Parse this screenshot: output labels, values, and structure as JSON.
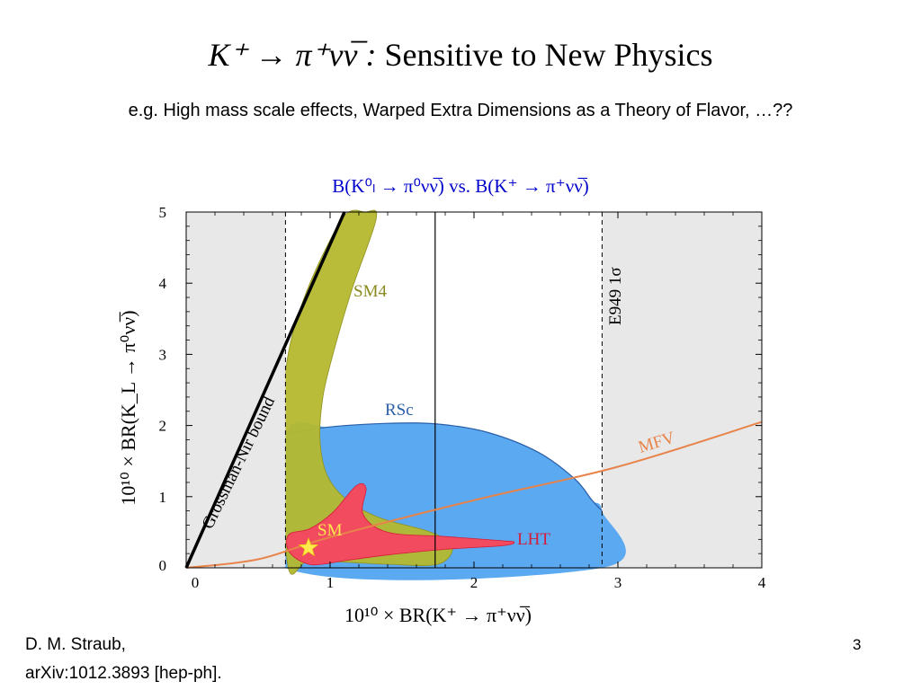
{
  "slide": {
    "title_math": "K⁺ → π⁺νν̅ :",
    "title_text": "Sensitive to New Physics",
    "subtitle": "e.g. High mass scale effects, Warped Extra Dimensions as a Theory of Flavor, …??",
    "chart_heading": "B(K⁰ₗ → π⁰νν̅) vs.  B(K⁺ → π⁺νν̅)",
    "citation_line1": "D. M. Straub,",
    "citation_line2": "arXiv:1012.3893 [hep-ph].",
    "page_number": "3"
  },
  "chart_data": {
    "type": "scatter",
    "xlabel": "10¹⁰ × BR(K⁺ → π⁺νν̅)",
    "ylabel": "10¹⁰ × BR(K_L → π⁰νν̅)",
    "xlim": [
      0,
      4
    ],
    "ylim": [
      0,
      5
    ],
    "x_ticks": [
      "0",
      "1",
      "2",
      "3",
      "4"
    ],
    "y_ticks": [
      "0",
      "1",
      "2",
      "3",
      "4",
      "5"
    ],
    "grossman_nir_bound": {
      "label": "Grossman-Nir bound",
      "points": [
        [
          0,
          0
        ],
        [
          1.1,
          5.0
        ]
      ]
    },
    "e949_band": {
      "label": "E949 1σ",
      "x_low": 0.69,
      "x_high": 2.89
    },
    "e949_central": 1.73,
    "regions": [
      {
        "name": "SM4",
        "color": "#b5b82e",
        "outline": [
          [
            0.7,
            2.9
          ],
          [
            1.05,
            4.8
          ],
          [
            1.25,
            5.0
          ],
          [
            1.32,
            4.9
          ],
          [
            1.15,
            3.9
          ],
          [
            1.02,
            3.0
          ],
          [
            0.95,
            2.4
          ],
          [
            0.93,
            1.8
          ],
          [
            0.98,
            1.3
          ],
          [
            1.12,
            0.95
          ],
          [
            1.35,
            0.7
          ],
          [
            1.7,
            0.5
          ],
          [
            1.85,
            0.3
          ],
          [
            1.75,
            0.05
          ],
          [
            1.4,
            0.05
          ],
          [
            1.1,
            0.08
          ],
          [
            0.85,
            0.1
          ],
          [
            0.7,
            0.12
          ]
        ]
      },
      {
        "name": "RSc",
        "color": "#5ba9f0",
        "edge": "#2b5fa8",
        "outline": [
          [
            0.69,
            1.88
          ],
          [
            1.0,
            1.98
          ],
          [
            1.4,
            2.03
          ],
          [
            1.75,
            2.02
          ],
          [
            2.1,
            1.9
          ],
          [
            2.45,
            1.62
          ],
          [
            2.7,
            1.25
          ],
          [
            2.82,
            0.95
          ],
          [
            2.89,
            0.8
          ],
          [
            2.89,
            0.0
          ],
          [
            0.69,
            0.0
          ]
        ]
      },
      {
        "name": "LHT",
        "color": "#f24a5e",
        "edge": "#d41c39",
        "outline": [
          [
            0.7,
            0.3
          ],
          [
            0.72,
            0.48
          ],
          [
            0.86,
            0.55
          ],
          [
            1.02,
            0.78
          ],
          [
            1.18,
            1.15
          ],
          [
            1.25,
            1.12
          ],
          [
            1.23,
            0.75
          ],
          [
            1.4,
            0.5
          ],
          [
            1.8,
            0.44
          ],
          [
            2.2,
            0.38
          ],
          [
            2.28,
            0.36
          ],
          [
            2.2,
            0.31
          ],
          [
            1.8,
            0.26
          ],
          [
            1.4,
            0.18
          ],
          [
            1.1,
            0.1
          ],
          [
            0.95,
            0.05
          ],
          [
            0.85,
            0.05
          ],
          [
            0.75,
            0.15
          ]
        ]
      },
      {
        "name": "MFV",
        "color": "#e8834a",
        "type": "curve",
        "points": [
          [
            0.0,
            0.0
          ],
          [
            0.5,
            0.12
          ],
          [
            1.0,
            0.43
          ],
          [
            2.0,
            0.95
          ],
          [
            3.0,
            1.42
          ],
          [
            4.0,
            2.05
          ]
        ]
      }
    ],
    "sm_point": {
      "name": "SM",
      "x": 0.85,
      "y": 0.28,
      "color": "#ffe94d"
    },
    "colors": {
      "excluded_fill": "#e8e8e8",
      "axis": "#000000",
      "gn_line": "#000000"
    }
  }
}
